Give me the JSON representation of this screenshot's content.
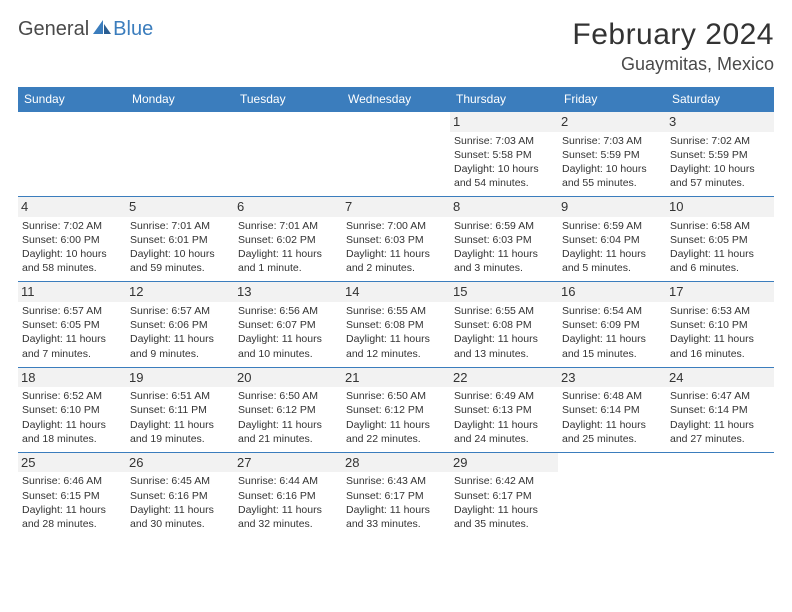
{
  "logo": {
    "text1": "General",
    "text2": "Blue"
  },
  "title": "February 2024",
  "location": "Guaymitas, Mexico",
  "colors": {
    "header_bg": "#3b7dbd",
    "header_text": "#ffffff",
    "border": "#3b7dbd",
    "daynum_bg": "#f2f2f2",
    "text": "#333333",
    "page_bg": "#ffffff"
  },
  "weekdays": [
    "Sunday",
    "Monday",
    "Tuesday",
    "Wednesday",
    "Thursday",
    "Friday",
    "Saturday"
  ],
  "weeks": [
    [
      null,
      null,
      null,
      null,
      {
        "d": "1",
        "sr": "Sunrise: 7:03 AM",
        "ss": "Sunset: 5:58 PM",
        "dl1": "Daylight: 10 hours",
        "dl2": "and 54 minutes."
      },
      {
        "d": "2",
        "sr": "Sunrise: 7:03 AM",
        "ss": "Sunset: 5:59 PM",
        "dl1": "Daylight: 10 hours",
        "dl2": "and 55 minutes."
      },
      {
        "d": "3",
        "sr": "Sunrise: 7:02 AM",
        "ss": "Sunset: 5:59 PM",
        "dl1": "Daylight: 10 hours",
        "dl2": "and 57 minutes."
      }
    ],
    [
      {
        "d": "4",
        "sr": "Sunrise: 7:02 AM",
        "ss": "Sunset: 6:00 PM",
        "dl1": "Daylight: 10 hours",
        "dl2": "and 58 minutes."
      },
      {
        "d": "5",
        "sr": "Sunrise: 7:01 AM",
        "ss": "Sunset: 6:01 PM",
        "dl1": "Daylight: 10 hours",
        "dl2": "and 59 minutes."
      },
      {
        "d": "6",
        "sr": "Sunrise: 7:01 AM",
        "ss": "Sunset: 6:02 PM",
        "dl1": "Daylight: 11 hours",
        "dl2": "and 1 minute."
      },
      {
        "d": "7",
        "sr": "Sunrise: 7:00 AM",
        "ss": "Sunset: 6:03 PM",
        "dl1": "Daylight: 11 hours",
        "dl2": "and 2 minutes."
      },
      {
        "d": "8",
        "sr": "Sunrise: 6:59 AM",
        "ss": "Sunset: 6:03 PM",
        "dl1": "Daylight: 11 hours",
        "dl2": "and 3 minutes."
      },
      {
        "d": "9",
        "sr": "Sunrise: 6:59 AM",
        "ss": "Sunset: 6:04 PM",
        "dl1": "Daylight: 11 hours",
        "dl2": "and 5 minutes."
      },
      {
        "d": "10",
        "sr": "Sunrise: 6:58 AM",
        "ss": "Sunset: 6:05 PM",
        "dl1": "Daylight: 11 hours",
        "dl2": "and 6 minutes."
      }
    ],
    [
      {
        "d": "11",
        "sr": "Sunrise: 6:57 AM",
        "ss": "Sunset: 6:05 PM",
        "dl1": "Daylight: 11 hours",
        "dl2": "and 7 minutes."
      },
      {
        "d": "12",
        "sr": "Sunrise: 6:57 AM",
        "ss": "Sunset: 6:06 PM",
        "dl1": "Daylight: 11 hours",
        "dl2": "and 9 minutes."
      },
      {
        "d": "13",
        "sr": "Sunrise: 6:56 AM",
        "ss": "Sunset: 6:07 PM",
        "dl1": "Daylight: 11 hours",
        "dl2": "and 10 minutes."
      },
      {
        "d": "14",
        "sr": "Sunrise: 6:55 AM",
        "ss": "Sunset: 6:08 PM",
        "dl1": "Daylight: 11 hours",
        "dl2": "and 12 minutes."
      },
      {
        "d": "15",
        "sr": "Sunrise: 6:55 AM",
        "ss": "Sunset: 6:08 PM",
        "dl1": "Daylight: 11 hours",
        "dl2": "and 13 minutes."
      },
      {
        "d": "16",
        "sr": "Sunrise: 6:54 AM",
        "ss": "Sunset: 6:09 PM",
        "dl1": "Daylight: 11 hours",
        "dl2": "and 15 minutes."
      },
      {
        "d": "17",
        "sr": "Sunrise: 6:53 AM",
        "ss": "Sunset: 6:10 PM",
        "dl1": "Daylight: 11 hours",
        "dl2": "and 16 minutes."
      }
    ],
    [
      {
        "d": "18",
        "sr": "Sunrise: 6:52 AM",
        "ss": "Sunset: 6:10 PM",
        "dl1": "Daylight: 11 hours",
        "dl2": "and 18 minutes."
      },
      {
        "d": "19",
        "sr": "Sunrise: 6:51 AM",
        "ss": "Sunset: 6:11 PM",
        "dl1": "Daylight: 11 hours",
        "dl2": "and 19 minutes."
      },
      {
        "d": "20",
        "sr": "Sunrise: 6:50 AM",
        "ss": "Sunset: 6:12 PM",
        "dl1": "Daylight: 11 hours",
        "dl2": "and 21 minutes."
      },
      {
        "d": "21",
        "sr": "Sunrise: 6:50 AM",
        "ss": "Sunset: 6:12 PM",
        "dl1": "Daylight: 11 hours",
        "dl2": "and 22 minutes."
      },
      {
        "d": "22",
        "sr": "Sunrise: 6:49 AM",
        "ss": "Sunset: 6:13 PM",
        "dl1": "Daylight: 11 hours",
        "dl2": "and 24 minutes."
      },
      {
        "d": "23",
        "sr": "Sunrise: 6:48 AM",
        "ss": "Sunset: 6:14 PM",
        "dl1": "Daylight: 11 hours",
        "dl2": "and 25 minutes."
      },
      {
        "d": "24",
        "sr": "Sunrise: 6:47 AM",
        "ss": "Sunset: 6:14 PM",
        "dl1": "Daylight: 11 hours",
        "dl2": "and 27 minutes."
      }
    ],
    [
      {
        "d": "25",
        "sr": "Sunrise: 6:46 AM",
        "ss": "Sunset: 6:15 PM",
        "dl1": "Daylight: 11 hours",
        "dl2": "and 28 minutes."
      },
      {
        "d": "26",
        "sr": "Sunrise: 6:45 AM",
        "ss": "Sunset: 6:16 PM",
        "dl1": "Daylight: 11 hours",
        "dl2": "and 30 minutes."
      },
      {
        "d": "27",
        "sr": "Sunrise: 6:44 AM",
        "ss": "Sunset: 6:16 PM",
        "dl1": "Daylight: 11 hours",
        "dl2": "and 32 minutes."
      },
      {
        "d": "28",
        "sr": "Sunrise: 6:43 AM",
        "ss": "Sunset: 6:17 PM",
        "dl1": "Daylight: 11 hours",
        "dl2": "and 33 minutes."
      },
      {
        "d": "29",
        "sr": "Sunrise: 6:42 AM",
        "ss": "Sunset: 6:17 PM",
        "dl1": "Daylight: 11 hours",
        "dl2": "and 35 minutes."
      },
      null,
      null
    ]
  ]
}
